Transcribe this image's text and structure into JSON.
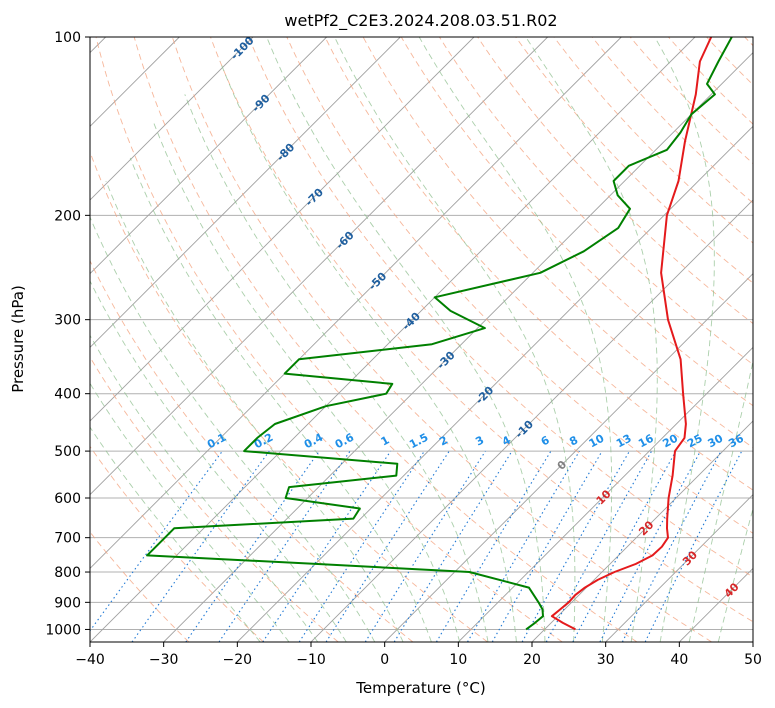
{
  "chart_data": {
    "type": "line",
    "title": "wetPf2_C2E3.2024.208.03.51.R02",
    "xlabel": "Temperature (°C)",
    "ylabel": "Pressure (hPa)",
    "xlim": [
      -40,
      50
    ],
    "ylim": [
      1050,
      100
    ],
    "y_scale": "log",
    "grid": true,
    "x_ticks": [
      -40,
      -30,
      -20,
      -10,
      0,
      10,
      20,
      30,
      40,
      50
    ],
    "y_ticks": [
      100,
      200,
      300,
      400,
      500,
      600,
      700,
      800,
      900,
      1000
    ],
    "colors": {
      "temperature": "#e41a1c",
      "dewpoint": "#008000",
      "isotherm": "#a0a0a0",
      "dry_adiabat": "#f4a582",
      "moist_adiabat": "#8fbf8f",
      "mixing_ratio": "#1f78d4",
      "adiabat_label": "#1f5f9f",
      "mixing_label": "#1f8fe8",
      "warm_label": "#d62728",
      "zero_label": "#808080"
    },
    "series": [
      {
        "key": "temperature",
        "p": [
          1000,
          975,
          950,
          925,
          900,
          875,
          850,
          825,
          800,
          775,
          750,
          725,
          700,
          675,
          650,
          600,
          550,
          500,
          475,
          450,
          400,
          350,
          300,
          250,
          200,
          175,
          150,
          125,
          110,
          100
        ],
        "t": [
          24.2,
          21.6,
          19.2,
          19.4,
          19.6,
          19.5,
          19.8,
          20.5,
          21.7,
          23.5,
          24.6,
          24.7,
          24.3,
          22.9,
          21.6,
          19.0,
          16.5,
          13.5,
          13.0,
          11.3,
          6.8,
          1.8,
          -5.3,
          -12.6,
          -19.6,
          -22.7,
          -27.2,
          -32.1,
          -36.0,
          -37.8
        ]
      },
      {
        "key": "dewpoint",
        "p": [
          1000,
          975,
          950,
          925,
          900,
          850,
          800,
          775,
          750,
          700,
          675,
          650,
          625,
          600,
          575,
          550,
          525,
          500,
          475,
          450,
          420,
          400,
          385,
          370,
          350,
          330,
          310,
          290,
          275,
          250,
          230,
          210,
          195,
          185,
          175,
          165,
          155,
          145,
          140,
          135,
          125,
          120,
          110,
          100
        ],
        "t": [
          17.5,
          17.8,
          18.0,
          17.0,
          15.5,
          12.2,
          2.0,
          -20,
          -44,
          -44,
          -44,
          -21,
          -21.5,
          -33,
          -34,
          -21,
          -22.5,
          -45,
          -45,
          -44.5,
          -40,
          -33.5,
          -34,
          -50,
          -50,
          -34,
          -29,
          -36,
          -40,
          -29,
          -26,
          -24.5,
          -25.5,
          -29,
          -31.5,
          -31.5,
          -28.5,
          -29,
          -29.5,
          -30,
          -29.5,
          -32,
          -33.5,
          -35
        ]
      }
    ],
    "isotherm_labels": [
      "-100",
      "-90",
      "-80",
      "-70",
      "-60",
      "-50",
      "-40",
      "-30",
      "-20",
      "-10",
      "0",
      "10",
      "20",
      "30",
      "40"
    ],
    "mixing_ratio_labels": [
      "0.1",
      "0.2",
      "0.4",
      "0.6",
      "1",
      "1.5",
      "2",
      "3",
      "4",
      "6",
      "8",
      "10",
      "13",
      "16",
      "20",
      "25",
      "30",
      "36"
    ]
  }
}
